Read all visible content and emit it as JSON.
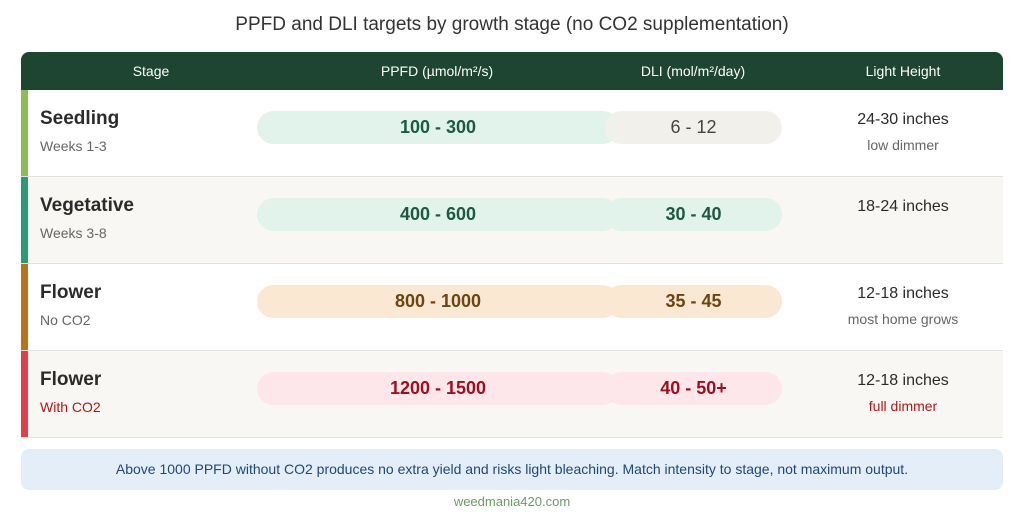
{
  "title": "PPFD and DLI targets by growth stage (no CO2 supplementation)",
  "table": {
    "headers": [
      "Stage",
      "PPFD (µmol/m²/s)",
      "DLI (mol/m²/day)",
      "Light Height"
    ],
    "rows": [
      {
        "stage": "Seedling",
        "detail": "Weeks 1-3",
        "ppfd": "100 - 300",
        "dli": "6 - 12",
        "height": "24-30 inches",
        "height_note": "low dimmer"
      },
      {
        "stage": "Vegetative",
        "detail": "Weeks 3-8",
        "ppfd": "400 - 600",
        "dli": "30 - 40",
        "height": "18-24 inches"
      },
      {
        "stage": "Flower",
        "detail": "No CO2",
        "ppfd": "800 - 1000",
        "dli": "35 - 45",
        "height": "12-18 inches",
        "height_note": "most home grows"
      },
      {
        "stage": "Flower",
        "detail": "With CO2",
        "ppfd": "1200 - 1500",
        "dli": "40 - 50+",
        "height": "12-18 inches",
        "height_note": "full dimmer"
      }
    ]
  },
  "note": "Above 1000 PPFD without CO2 produces no extra yield and risks light bleaching. Match intensity to stage, not maximum output.",
  "footer": "weedmania420.com"
}
